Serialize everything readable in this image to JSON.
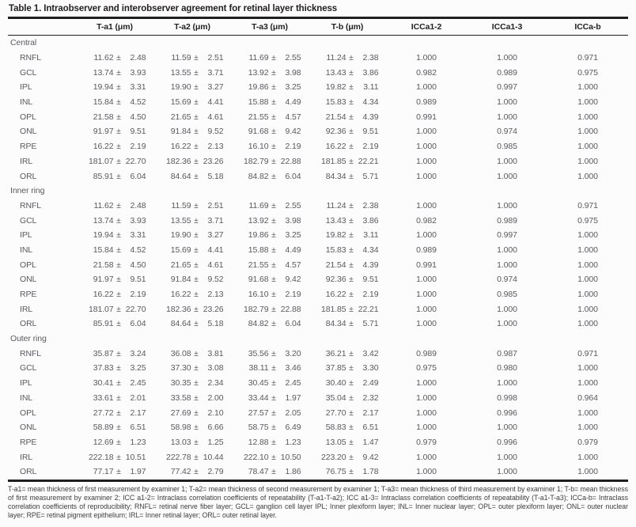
{
  "table": {
    "title": "Table 1. Intraobserver and interobserver agreement for retinal layer thickness",
    "plus_minus": "±",
    "columns": [
      "",
      "T-a1 (μm)",
      "T-a2 (μm)",
      "T-a3 (μm)",
      "T-b (μm)",
      "ICCa1-2",
      "ICCa1-3",
      "ICCa-b"
    ],
    "sections": [
      {
        "name": "Central",
        "rows": [
          {
            "layer": "RNFL",
            "values": [
              [
                "11.62",
                "2.48"
              ],
              [
                "11.59",
                "2.51"
              ],
              [
                "11.69",
                "2.55"
              ],
              [
                "11.24",
                "2.38"
              ]
            ],
            "icc": [
              "1.000",
              "1.000",
              "0.971"
            ]
          },
          {
            "layer": "GCL",
            "values": [
              [
                "13.74",
                "3.93"
              ],
              [
                "13.55",
                "3.71"
              ],
              [
                "13.92",
                "3.98"
              ],
              [
                "13.43",
                "3.86"
              ]
            ],
            "icc": [
              "0.982",
              "0.989",
              "0.975"
            ]
          },
          {
            "layer": "IPL",
            "values": [
              [
                "19.94",
                "3.31"
              ],
              [
                "19.90",
                "3.27"
              ],
              [
                "19.86",
                "3.25"
              ],
              [
                "19.82",
                "3.11"
              ]
            ],
            "icc": [
              "1.000",
              "0.997",
              "1.000"
            ]
          },
          {
            "layer": "INL",
            "values": [
              [
                "15.84",
                "4.52"
              ],
              [
                "15.69",
                "4.41"
              ],
              [
                "15.88",
                "4.49"
              ],
              [
                "15.83",
                "4.34"
              ]
            ],
            "icc": [
              "0.989",
              "1.000",
              "1.000"
            ]
          },
          {
            "layer": "OPL",
            "values": [
              [
                "21.58",
                "4.50"
              ],
              [
                "21.65",
                "4.61"
              ],
              [
                "21.55",
                "4.57"
              ],
              [
                "21.54",
                "4.39"
              ]
            ],
            "icc": [
              "0.991",
              "1.000",
              "1.000"
            ]
          },
          {
            "layer": "ONL",
            "values": [
              [
                "91.97",
                "9.51"
              ],
              [
                "91.84",
                "9.52"
              ],
              [
                "91.68",
                "9.42"
              ],
              [
                "92.36",
                "9.51"
              ]
            ],
            "icc": [
              "1.000",
              "0.974",
              "1.000"
            ]
          },
          {
            "layer": "RPE",
            "values": [
              [
                "16.22",
                "2.19"
              ],
              [
                "16.22",
                "2.13"
              ],
              [
                "16.10",
                "2.19"
              ],
              [
                "16.22",
                "2.19"
              ]
            ],
            "icc": [
              "1.000",
              "0.985",
              "1.000"
            ]
          },
          {
            "layer": "IRL",
            "values": [
              [
                "181.07",
                "22.70"
              ],
              [
                "182.36",
                "23.26"
              ],
              [
                "182.79",
                "22.88"
              ],
              [
                "181.85",
                "22.21"
              ]
            ],
            "icc": [
              "1.000",
              "1.000",
              "1.000"
            ]
          },
          {
            "layer": "ORL",
            "values": [
              [
                "85.91",
                "6.04"
              ],
              [
                "84.64",
                "5.18"
              ],
              [
                "84.82",
                "6.04"
              ],
              [
                "84.34",
                "5.71"
              ]
            ],
            "icc": [
              "1.000",
              "1.000",
              "1.000"
            ]
          }
        ]
      },
      {
        "name": "Inner ring",
        "rows": [
          {
            "layer": "RNFL",
            "values": [
              [
                "11.62",
                "2.48"
              ],
              [
                "11.59",
                "2.51"
              ],
              [
                "11.69",
                "2.55"
              ],
              [
                "11.24",
                "2.38"
              ]
            ],
            "icc": [
              "1.000",
              "1.000",
              "0.971"
            ]
          },
          {
            "layer": "GCL",
            "values": [
              [
                "13.74",
                "3.93"
              ],
              [
                "13.55",
                "3.71"
              ],
              [
                "13.92",
                "3.98"
              ],
              [
                "13.43",
                "3.86"
              ]
            ],
            "icc": [
              "0.982",
              "0.989",
              "0.975"
            ]
          },
          {
            "layer": "IPL",
            "values": [
              [
                "19.94",
                "3.31"
              ],
              [
                "19.90",
                "3.27"
              ],
              [
                "19.86",
                "3.25"
              ],
              [
                "19.82",
                "3.11"
              ]
            ],
            "icc": [
              "1.000",
              "0.997",
              "1.000"
            ]
          },
          {
            "layer": "INL",
            "values": [
              [
                "15.84",
                "4.52"
              ],
              [
                "15.69",
                "4.41"
              ],
              [
                "15.88",
                "4.49"
              ],
              [
                "15.83",
                "4.34"
              ]
            ],
            "icc": [
              "0.989",
              "1.000",
              "1.000"
            ]
          },
          {
            "layer": "OPL",
            "values": [
              [
                "21.58",
                "4.50"
              ],
              [
                "21.65",
                "4.61"
              ],
              [
                "21.55",
                "4.57"
              ],
              [
                "21.54",
                "4.39"
              ]
            ],
            "icc": [
              "0.991",
              "1.000",
              "1.000"
            ]
          },
          {
            "layer": "ONL",
            "values": [
              [
                "91.97",
                "9.51"
              ],
              [
                "91.84",
                "9.52"
              ],
              [
                "91.68",
                "9.42"
              ],
              [
                "92.36",
                "9.51"
              ]
            ],
            "icc": [
              "1.000",
              "0.974",
              "1.000"
            ]
          },
          {
            "layer": "RPE",
            "values": [
              [
                "16.22",
                "2.19"
              ],
              [
                "16.22",
                "2.13"
              ],
              [
                "16.10",
                "2.19"
              ],
              [
                "16.22",
                "2.19"
              ]
            ],
            "icc": [
              "1.000",
              "0.985",
              "1.000"
            ]
          },
          {
            "layer": "IRL",
            "values": [
              [
                "181.07",
                "22.70"
              ],
              [
                "182.36",
                "23.26"
              ],
              [
                "182.79",
                "22.88"
              ],
              [
                "181.85",
                "22.21"
              ]
            ],
            "icc": [
              "1.000",
              "1.000",
              "1.000"
            ]
          },
          {
            "layer": "ORL",
            "values": [
              [
                "85.91",
                "6.04"
              ],
              [
                "84.64",
                "5.18"
              ],
              [
                "84.82",
                "6.04"
              ],
              [
                "84.34",
                "5.71"
              ]
            ],
            "icc": [
              "1.000",
              "1.000",
              "1.000"
            ]
          }
        ]
      },
      {
        "name": "Outer ring",
        "rows": [
          {
            "layer": "RNFL",
            "values": [
              [
                "35.87",
                "3.24"
              ],
              [
                "36.08",
                "3.81"
              ],
              [
                "35.56",
                "3.20"
              ],
              [
                "36.21",
                "3.42"
              ]
            ],
            "icc": [
              "0.989",
              "0.987",
              "0.971"
            ]
          },
          {
            "layer": "GCL",
            "values": [
              [
                "37.83",
                "3.25"
              ],
              [
                "37.30",
                "3.08"
              ],
              [
                "38.11",
                "3.46"
              ],
              [
                "37.85",
                "3.30"
              ]
            ],
            "icc": [
              "0.975",
              "0.980",
              "1.000"
            ]
          },
          {
            "layer": "IPL",
            "values": [
              [
                "30.41",
                "2.45"
              ],
              [
                "30.35",
                "2.34"
              ],
              [
                "30.45",
                "2.45"
              ],
              [
                "30.40",
                "2.49"
              ]
            ],
            "icc": [
              "1.000",
              "1.000",
              "1.000"
            ]
          },
          {
            "layer": "INL",
            "values": [
              [
                "33.61",
                "2.01"
              ],
              [
                "33.58",
                "2.00"
              ],
              [
                "33.44",
                "1.97"
              ],
              [
                "35.04",
                "2.32"
              ]
            ],
            "icc": [
              "1.000",
              "0.998",
              "0.964"
            ]
          },
          {
            "layer": "OPL",
            "values": [
              [
                "27.72",
                "2.17"
              ],
              [
                "27.69",
                "2.10"
              ],
              [
                "27.57",
                "2.05"
              ],
              [
                "27.70",
                "2.17"
              ]
            ],
            "icc": [
              "1.000",
              "0.996",
              "1.000"
            ]
          },
          {
            "layer": "ONL",
            "values": [
              [
                "58.89",
                "6.51"
              ],
              [
                "58.98",
                "6.66"
              ],
              [
                "58.75",
                "6.49"
              ],
              [
                "58.83",
                "6.51"
              ]
            ],
            "icc": [
              "1.000",
              "1.000",
              "1.000"
            ]
          },
          {
            "layer": "RPE",
            "values": [
              [
                "12.69",
                "1.23"
              ],
              [
                "13.03",
                "1.25"
              ],
              [
                "12.88",
                "1.23"
              ],
              [
                "13.05",
                "1.47"
              ]
            ],
            "icc": [
              "0.979",
              "0.996",
              "0.979"
            ]
          },
          {
            "layer": "IRL",
            "values": [
              [
                "222.18",
                "10.51"
              ],
              [
                "222.78",
                "10.44"
              ],
              [
                "222.10",
                "10.50"
              ],
              [
                "223.20",
                "9.42"
              ]
            ],
            "icc": [
              "1.000",
              "1.000",
              "1.000"
            ]
          },
          {
            "layer": "ORL",
            "values": [
              [
                "77.17",
                "1.97"
              ],
              [
                "77.42",
                "2.79"
              ],
              [
                "78.47",
                "1.86"
              ],
              [
                "76.75",
                "1.78"
              ]
            ],
            "icc": [
              "1.000",
              "1.000",
              "1.000"
            ]
          }
        ]
      }
    ],
    "footnote": "T-a1= mean thickness of first measurement by examiner 1; T-a2= mean thickness of second measurement by examiner 1; T-a3= mean thickness of third measurement by examiner 1; T-b= mean thickness of first measurement by examiner 2; ICC a1-2= Intraclass correlation coefficients of repeatability (T-a1-T-a2); ICC a1-3= Intraclass correlation coefficients of repeatability (T-a1-T-a3); ICCa-b= Intraclass correlation coefficients of reproducibility; RNFL= retinal nerve fiber layer; GCL= ganglion cell layer IPL; Inner plexiform layer; INL= Inner nuclear layer; OPL= outer plexiform layer; ONL= outer nuclear layer; RPE= retinal pigment epithelium; IRL= Inner retinal layer; ORL= outer retinal layer."
  },
  "colors": {
    "rule": "#1f1f1f",
    "heading_text": "#231f20",
    "body_text": "#585a5f",
    "footnote_text": "#3d3e40",
    "background": "#fcfcfc"
  }
}
